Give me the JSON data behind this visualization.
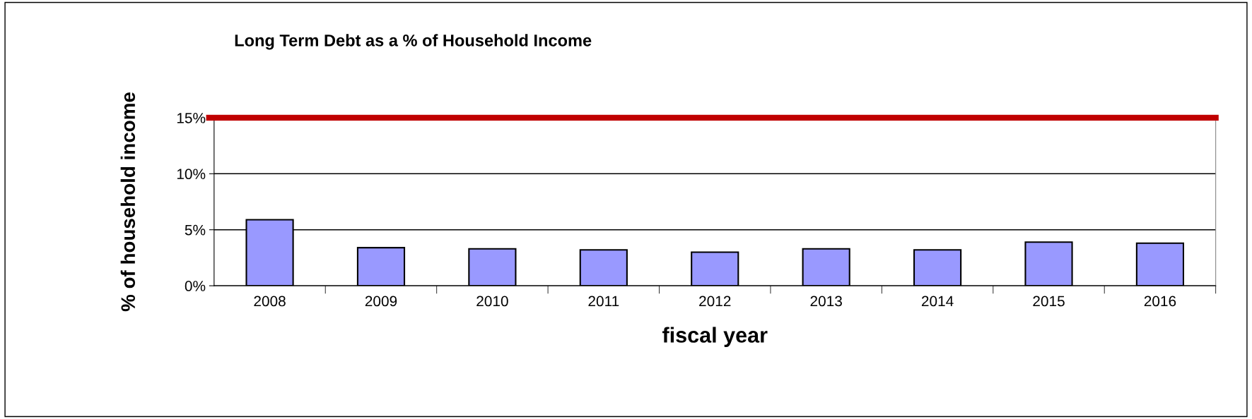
{
  "chart_data": {
    "type": "bar",
    "title": "Long Term Debt as a % of Household Income",
    "xlabel": "fiscal year",
    "ylabel": "% of household income",
    "categories": [
      "2008",
      "2009",
      "2010",
      "2011",
      "2012",
      "2013",
      "2014",
      "2015",
      "2016"
    ],
    "values": [
      5.9,
      3.4,
      3.3,
      3.2,
      3.0,
      3.3,
      3.2,
      3.9,
      3.8
    ],
    "color": "#9999ff",
    "ylim": [
      0,
      15
    ],
    "yticks": [
      {
        "value": 0,
        "label": "0%"
      },
      {
        "value": 5,
        "label": "5%"
      },
      {
        "value": 10,
        "label": "10%"
      },
      {
        "value": 15,
        "label": "15%"
      }
    ],
    "grid": "y",
    "ref_lines": [
      {
        "axis": "y",
        "value": 15,
        "color": "#c00000"
      }
    ]
  }
}
